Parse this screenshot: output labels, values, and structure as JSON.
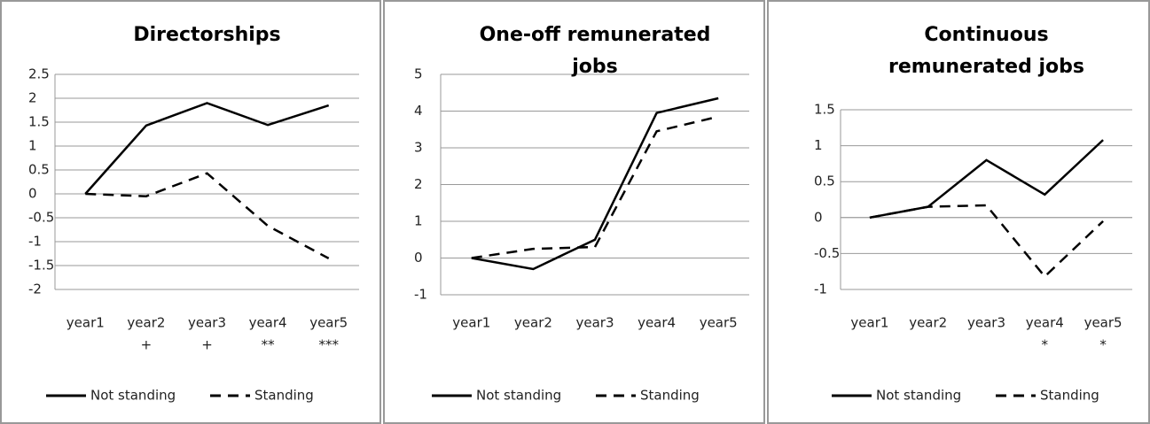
{
  "chart_data": [
    {
      "type": "line",
      "title": "Directorships",
      "categories": [
        "year1",
        "year2",
        "year3",
        "year4",
        "year5"
      ],
      "significance": [
        null,
        "+",
        "+",
        "**",
        "***"
      ],
      "series": [
        {
          "name": "Not standing",
          "color": "#000000",
          "style": "solid",
          "values": [
            0,
            1.43,
            1.9,
            1.44,
            1.85
          ]
        },
        {
          "name": "Standing",
          "color": "#000000",
          "style": "dashed",
          "values": [
            0,
            -0.05,
            0.43,
            -0.67,
            -1.35
          ]
        }
      ],
      "ylim": [
        -2,
        2.5
      ],
      "yticks": [
        -2,
        -1.5,
        -1,
        -0.5,
        0,
        0.5,
        1,
        1.5,
        2,
        2.5
      ],
      "grid": true,
      "legend": "bottom"
    },
    {
      "type": "line",
      "title": "One-off remunerated jobs",
      "categories": [
        "year1",
        "year2",
        "year3",
        "year4",
        "year5"
      ],
      "series": [
        {
          "name": "Not standing",
          "color": "#000000",
          "style": "solid",
          "values": [
            0,
            -0.3,
            0.5,
            3.95,
            4.35
          ]
        },
        {
          "name": "Standing",
          "color": "#000000",
          "style": "dashed",
          "values": [
            0,
            0.25,
            0.3,
            3.45,
            3.85
          ]
        }
      ],
      "ylim": [
        -1,
        5
      ],
      "yticks": [
        -1,
        0,
        1,
        2,
        3,
        4,
        5
      ],
      "grid": true,
      "legend": "bottom"
    },
    {
      "type": "line",
      "title": "Continuous remunerated jobs",
      "categories": [
        "year1",
        "year2",
        "year3",
        "year4",
        "year5"
      ],
      "significance": [
        null,
        null,
        null,
        "*",
        "*"
      ],
      "series": [
        {
          "name": "Not standing",
          "color": "#000000",
          "style": "solid",
          "values": [
            0,
            0.15,
            0.8,
            0.32,
            1.08
          ]
        },
        {
          "name": "Standing",
          "color": "#000000",
          "style": "dashed",
          "values": [
            0,
            0.15,
            0.17,
            -0.82,
            -0.05
          ]
        }
      ],
      "ylim": [
        -1,
        1.5
      ],
      "yticks": [
        -1,
        -0.5,
        0,
        0.5,
        1,
        1.5
      ],
      "grid": true,
      "legend": "bottom"
    }
  ]
}
